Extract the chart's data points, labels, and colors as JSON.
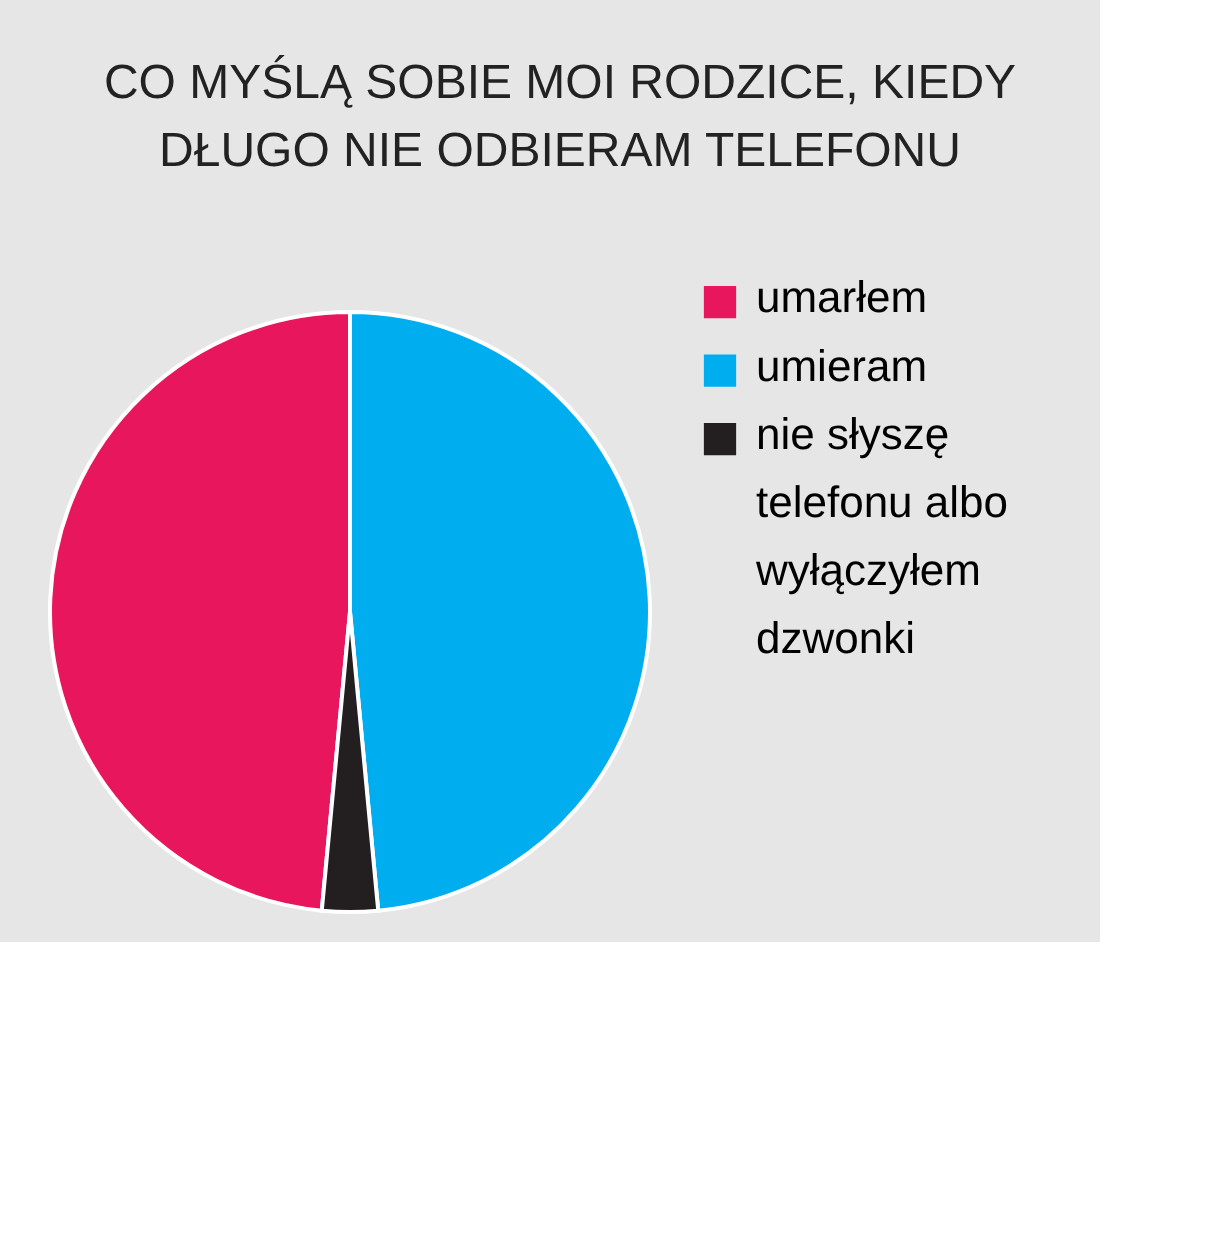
{
  "chart_data": {
    "type": "pie",
    "title": "CO MYŚLĄ SOBIE MOI RODZICE, KIEDY DŁUGO NIE ODBIERAM TELEFONU",
    "categories": [
      "umarłem",
      "umieram",
      "nie słyszę telefonu albo wyłączyłem dzwonki"
    ],
    "values": [
      48.5,
      48.5,
      3
    ],
    "colors": [
      "#e8175d",
      "#00aeef",
      "#231f20"
    ],
    "legend": "right"
  }
}
